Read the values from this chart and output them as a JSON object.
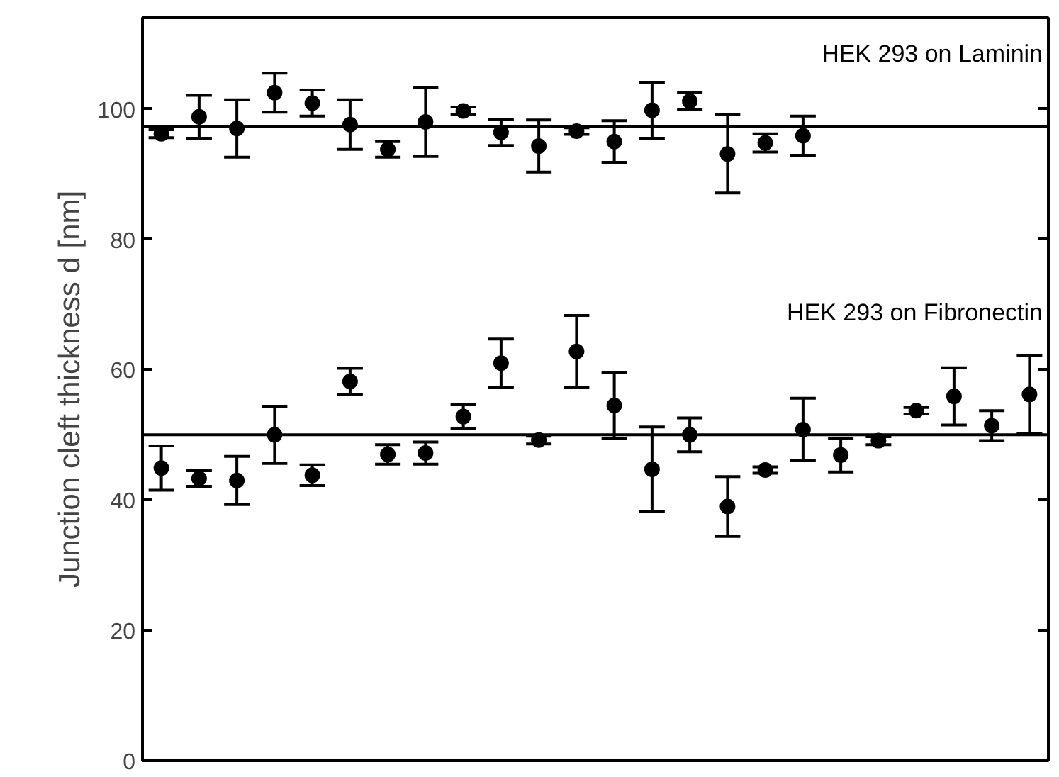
{
  "chart_data": {
    "type": "scatter",
    "ylabel": "Junction cleft thickness d [nm]",
    "categories": [
      null,
      null,
      null,
      null,
      null,
      null,
      null,
      null,
      null,
      null,
      null,
      null,
      null,
      null,
      null,
      null,
      null,
      null,
      null,
      null,
      null,
      null,
      null,
      null
    ],
    "series": [
      {
        "name": "HEK 293 on Laminin",
        "color": "#000000",
        "values": [
          96.2,
          98.8,
          97,
          102.5,
          100.9,
          97.6,
          93.8,
          98,
          99.7,
          96.4,
          94.3,
          96.6,
          95,
          99.8,
          101.2,
          93.1,
          94.8,
          95.9,
          null,
          null,
          null,
          null,
          null,
          null
        ],
        "errors": [
          0.6,
          3.3,
          4.4,
          3,
          2,
          3.8,
          1.2,
          5.3,
          0.6,
          2,
          4,
          0.5,
          3.2,
          4.3,
          1.3,
          6,
          1.4,
          3,
          null,
          null,
          null,
          null,
          null,
          null
        ]
      },
      {
        "name": "HEK 293 on Fibronectin",
        "color": "#000000",
        "values": [
          44.9,
          43.3,
          43,
          50,
          43.8,
          58.2,
          47,
          47.2,
          52.8,
          61,
          49.2,
          62.8,
          54.5,
          44.7,
          50,
          39,
          44.6,
          50.8,
          46.9,
          49.1,
          53.7,
          55.9,
          51.4,
          56.2
        ],
        "errors": [
          3.4,
          1.2,
          3.7,
          4.4,
          1.6,
          2,
          1.5,
          1.7,
          1.8,
          3.7,
          0.6,
          5.5,
          5,
          6.5,
          2.6,
          4.6,
          0.5,
          4.8,
          2.6,
          0.6,
          0.5,
          4.4,
          2.3,
          6
        ]
      }
    ],
    "ref_lines": [
      {
        "axis": "y",
        "value": 97.3,
        "color": "#000000"
      },
      {
        "axis": "y",
        "value": 50,
        "color": "#000000"
      }
    ],
    "ylim": [
      0,
      114
    ],
    "yticks": [
      0,
      20,
      40,
      60,
      80,
      100
    ],
    "tick_labels": "y",
    "grid": false,
    "marker": "circle"
  }
}
